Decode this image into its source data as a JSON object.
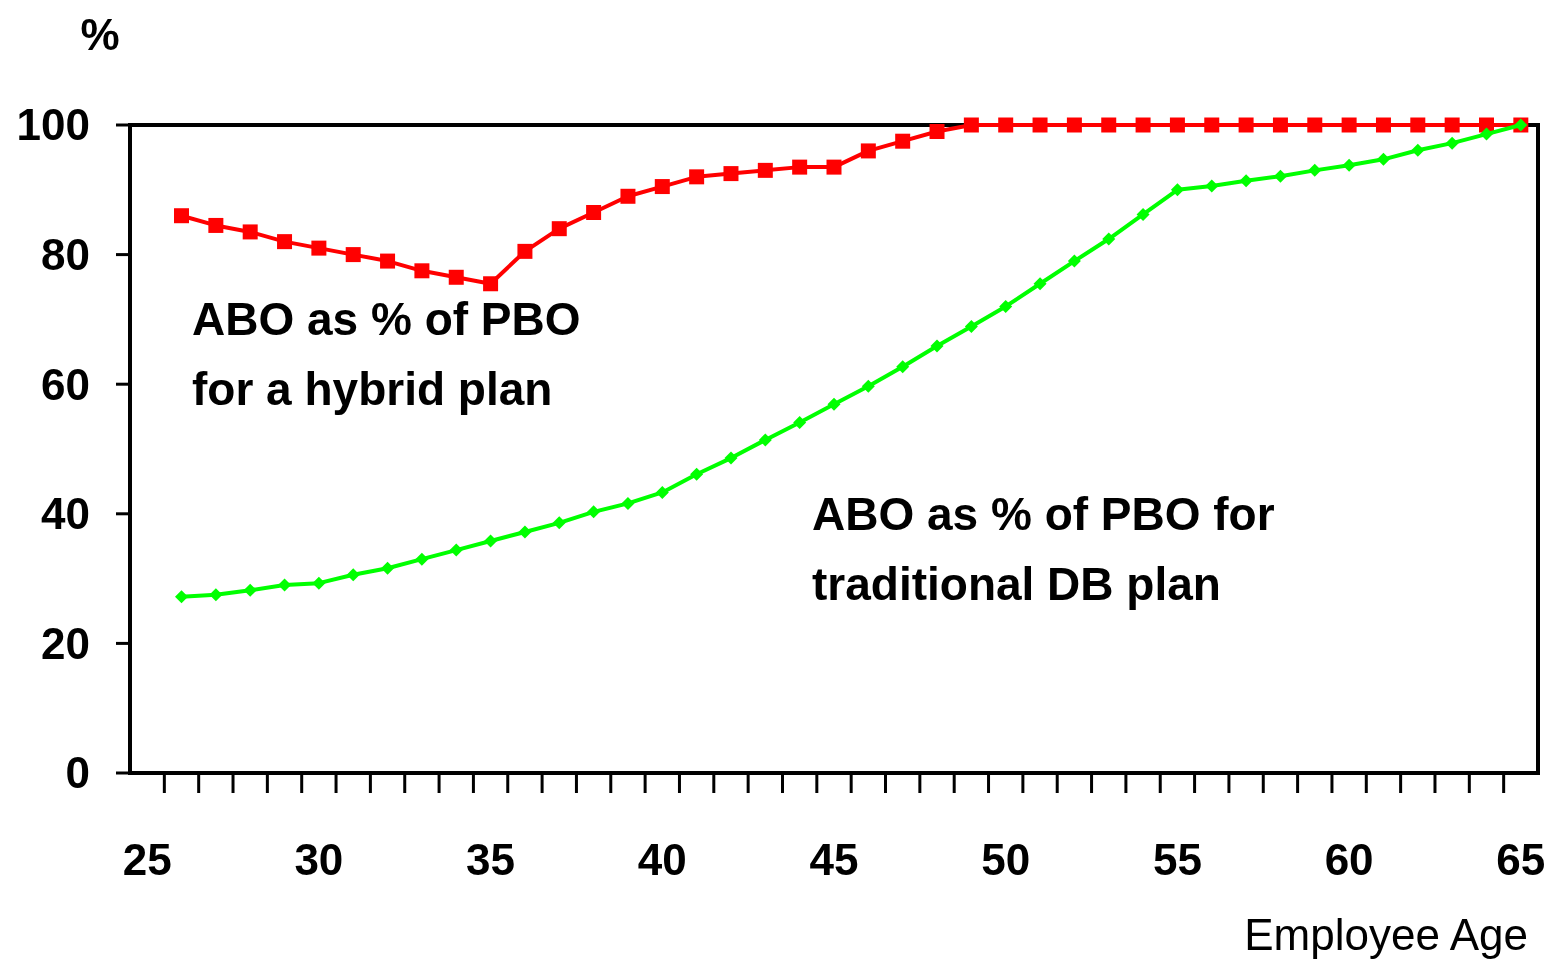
{
  "chart_data": {
    "type": "line",
    "ylabel": "%",
    "xlabel": "Employee Age",
    "xlim": [
      24.5,
      65.5
    ],
    "ylim": [
      0,
      100
    ],
    "xticks": [
      25,
      30,
      35,
      40,
      45,
      50,
      55,
      60,
      65
    ],
    "yticks": [
      0,
      20,
      40,
      60,
      80,
      100
    ],
    "grid": false,
    "x": [
      26,
      27,
      28,
      29,
      30,
      31,
      32,
      33,
      34,
      35,
      36,
      37,
      38,
      39,
      40,
      41,
      42,
      43,
      44,
      45,
      46,
      47,
      48,
      49,
      50,
      51,
      52,
      53,
      54,
      55,
      56,
      57,
      58,
      59,
      60,
      61,
      62,
      63,
      64,
      65
    ],
    "series": [
      {
        "name": "ABO as % of PBO for a hybrid plan",
        "color": "#ff0000",
        "marker": "square",
        "values": [
          86,
          84.5,
          83.5,
          82,
          81,
          80,
          79,
          77.5,
          76.5,
          75.5,
          80.5,
          84,
          86.5,
          89,
          90.5,
          92,
          92.5,
          93,
          93.5,
          93.5,
          96,
          97.5,
          99,
          100,
          100,
          100,
          100,
          100,
          100,
          100,
          100,
          100,
          100,
          100,
          100,
          100,
          100,
          100,
          100,
          100
        ]
      },
      {
        "name": "ABO as % of PBO for traditional DB plan",
        "color": "#00ff00",
        "marker": "diamond",
        "values": [
          27.2,
          27.5,
          28.2,
          29,
          29.3,
          30.6,
          31.6,
          33,
          34.4,
          35.8,
          37.2,
          38.6,
          40.3,
          41.6,
          43.3,
          46.1,
          48.6,
          51.4,
          54.1,
          56.9,
          59.7,
          62.7,
          65.9,
          68.9,
          72,
          75.5,
          79,
          82.4,
          86.2,
          90,
          90.6,
          91.4,
          92.1,
          93,
          93.8,
          94.7,
          96.1,
          97.2,
          98.6,
          100
        ]
      }
    ]
  }
}
